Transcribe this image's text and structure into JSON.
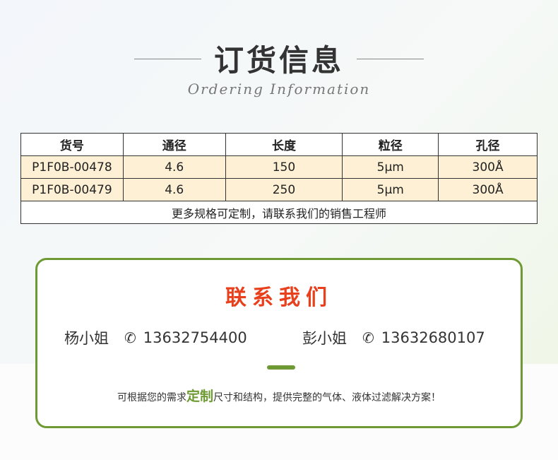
{
  "header": {
    "title": "订货信息",
    "subtitle": "Ordering Information"
  },
  "table": {
    "columns": [
      "货号",
      "通径",
      "长度",
      "粒径",
      "孔径"
    ],
    "rows": [
      [
        "P1F0B-00478",
        "4.6",
        "150",
        "5μm",
        "300Å"
      ],
      [
        "P1F0B-00479",
        "4.6",
        "250",
        "5μm",
        "300Å"
      ]
    ],
    "footer": "更多规格可定制，请联系我们的销售工程师"
  },
  "contact": {
    "title": "联系我们",
    "people": [
      {
        "name": "杨小姐",
        "phone": "13632754400"
      },
      {
        "name": "彭小姐",
        "phone": "13632680107"
      }
    ],
    "note_before": "可根据您的需求",
    "note_highlight": "定制",
    "note_after": "尺寸和结构，提供完整的气体、液体过滤解决方案！",
    "accent": "#6e9a34",
    "title_color": "#e8401c"
  }
}
